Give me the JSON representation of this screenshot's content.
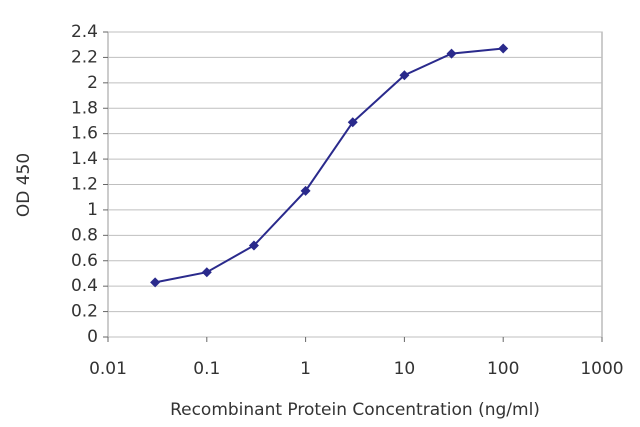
{
  "chart_data": {
    "type": "line",
    "xlabel": "Recombinant Protein Concentration (ng/ml)",
    "ylabel": "OD 450",
    "x": [
      0.03,
      0.1,
      0.3,
      1,
      3,
      10,
      30,
      100
    ],
    "values": [
      0.43,
      0.51,
      0.72,
      1.15,
      1.69,
      2.06,
      2.23,
      2.27
    ],
    "color": "#2a2a8c",
    "xscale": "log",
    "xlim": [
      0.01,
      1000
    ],
    "xticks": [
      0.01,
      0.1,
      1,
      10,
      100,
      1000
    ],
    "ylim": [
      0,
      2.4
    ],
    "yticks": [
      0,
      0.2,
      0.4,
      0.6,
      0.8,
      1,
      1.2,
      1.4,
      1.6,
      1.8,
      2,
      2.2,
      2.4
    ],
    "grid": true
  }
}
